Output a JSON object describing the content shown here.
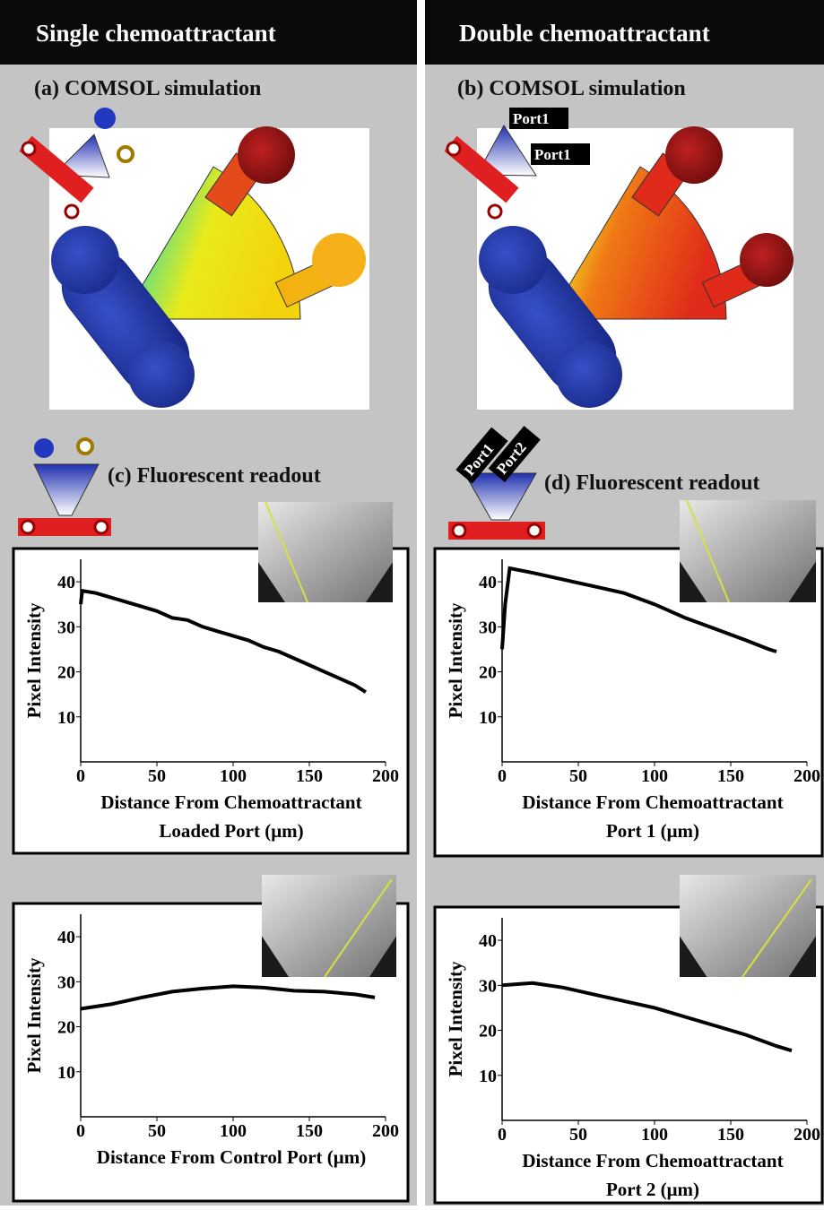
{
  "left": {
    "header": "Single chemoattractant",
    "sim_label": "(a) COMSOL simulation",
    "readout_label": "(c) Fluorescent readout"
  },
  "right": {
    "header": "Double chemoattractant",
    "sim_label": "(b) COMSOL simulation",
    "readout_label": "(d) Fluorescent readout",
    "sim_ports": [
      "Port1",
      "Port1"
    ],
    "readout_ports": [
      "Port1",
      "Port2"
    ]
  },
  "chart_data": [
    {
      "type": "line",
      "ylabel": "Pixel Intensity",
      "xlabel": [
        "Distance From Chemoattractant",
        "Loaded Port (μm)"
      ],
      "xlim": [
        0,
        200
      ],
      "ylim": [
        0,
        45
      ],
      "xticks": [
        0,
        50,
        100,
        150,
        200
      ],
      "yticks": [
        10,
        20,
        30,
        40
      ],
      "series": [
        {
          "color": "#000000",
          "x": [
            0,
            1,
            10,
            20,
            30,
            40,
            50,
            60,
            70,
            80,
            90,
            100,
            110,
            120,
            130,
            140,
            150,
            160,
            170,
            180,
            187
          ],
          "values": [
            35,
            38,
            37.5,
            36.5,
            35.5,
            34.5,
            33.5,
            32,
            31.5,
            30,
            29,
            28,
            27,
            25.5,
            24.5,
            23,
            21.5,
            20,
            18.5,
            17,
            15.5
          ]
        }
      ]
    },
    {
      "type": "line",
      "ylabel": "Pixel Intensity",
      "xlabel": [
        "Distance From Chemoattractant",
        "Port 1 (μm)"
      ],
      "xlim": [
        0,
        200
      ],
      "ylim": [
        0,
        45
      ],
      "xticks": [
        0,
        50,
        100,
        150,
        200
      ],
      "yticks": [
        10,
        20,
        30,
        40
      ],
      "series": [
        {
          "color": "#000000",
          "x": [
            0,
            2,
            5,
            20,
            40,
            60,
            80,
            100,
            120,
            140,
            160,
            175,
            180
          ],
          "values": [
            25,
            35,
            43,
            42,
            40.5,
            39,
            37.5,
            35,
            32,
            29.5,
            27,
            25,
            24.5
          ]
        }
      ]
    },
    {
      "type": "line",
      "ylabel": "Pixel Intensity",
      "xlabel": [
        "Distance From Control Port (μm)"
      ],
      "xlim": [
        0,
        200
      ],
      "ylim": [
        0,
        45
      ],
      "xticks": [
        0,
        50,
        100,
        150,
        200
      ],
      "yticks": [
        10,
        20,
        30,
        40
      ],
      "series": [
        {
          "color": "#000000",
          "x": [
            0,
            20,
            40,
            60,
            80,
            100,
            120,
            140,
            160,
            180,
            193
          ],
          "values": [
            24,
            25,
            26.5,
            27.8,
            28.5,
            29,
            28.7,
            28,
            27.8,
            27.2,
            26.5
          ]
        }
      ]
    },
    {
      "type": "line",
      "ylabel": "Pixel Intensity",
      "xlabel": [
        "Distance From Chemoattractant",
        "Port 2 (μm)"
      ],
      "xlim": [
        0,
        200
      ],
      "ylim": [
        0,
        45
      ],
      "xticks": [
        0,
        50,
        100,
        150,
        200
      ],
      "yticks": [
        10,
        20,
        30,
        40
      ],
      "series": [
        {
          "color": "#000000",
          "x": [
            0,
            20,
            40,
            60,
            80,
            100,
            120,
            140,
            160,
            180,
            190
          ],
          "values": [
            30,
            30.5,
            29.5,
            28,
            26.5,
            25,
            23,
            21,
            19,
            16.5,
            15.5
          ]
        }
      ]
    }
  ]
}
